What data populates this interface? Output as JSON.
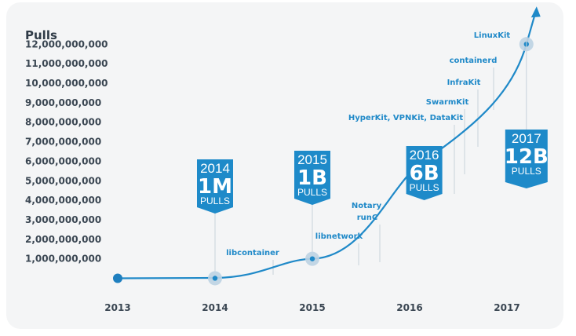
{
  "chart_data": {
    "type": "line",
    "ylabel": "Pulls",
    "xlabel": "",
    "x_ticks": [
      "2013",
      "2014",
      "2015",
      "2016",
      "2017"
    ],
    "y_ticks": [
      "1,000,000,000",
      "2,000,000,000",
      "3,000,000,000",
      "4,000,000,000",
      "5,000,000,000",
      "6,000,000,000",
      "7,000,000,000",
      "8,000,000,000",
      "9,000,000,000",
      "10,000,000,000",
      "11,000,000,000",
      "12,000,000,000"
    ],
    "ylim": [
      0,
      12000000000
    ],
    "series": [
      {
        "x": [
          2013.0,
          2014.0,
          2015.0,
          2016.15,
          2017.2
        ],
        "y": [
          1000,
          1000000,
          1000000000,
          6000000000,
          12000000000
        ]
      }
    ],
    "milestones": [
      {
        "x": 2014.0,
        "year": "2014",
        "value": "1M",
        "unit": "PULLS"
      },
      {
        "x": 2015.0,
        "year": "2015",
        "value": "1B",
        "unit": "PULLS"
      },
      {
        "x": 2016.15,
        "year": "2016",
        "value": "6B",
        "unit": "PULLS"
      },
      {
        "x": 2017.2,
        "year": "2017",
        "value": "12B",
        "unit": "PULLS"
      }
    ],
    "annotations": [
      {
        "label": "libcontainer",
        "x": 2014.6
      },
      {
        "label": "libnetwork",
        "x": 2015.5
      },
      {
        "label": "runC",
        "x": 2015.72
      },
      {
        "label": "Notary",
        "x": 2015.75
      },
      {
        "label": "HyperKit, VPNKit, DataKit",
        "x": 2016.55
      },
      {
        "label": "SwarmKit",
        "x": 2016.67
      },
      {
        "label": "InfraKit",
        "x": 2016.8
      },
      {
        "label": "containerd",
        "x": 2017.07
      },
      {
        "label": "LinuxKit",
        "x": 2017.2
      }
    ],
    "colors": {
      "line": "#1f89c8",
      "badge": "#1e8ac9",
      "milestone_halo": "#bcd3e3",
      "start_point": "#1e7fbf"
    },
    "grid": false
  }
}
